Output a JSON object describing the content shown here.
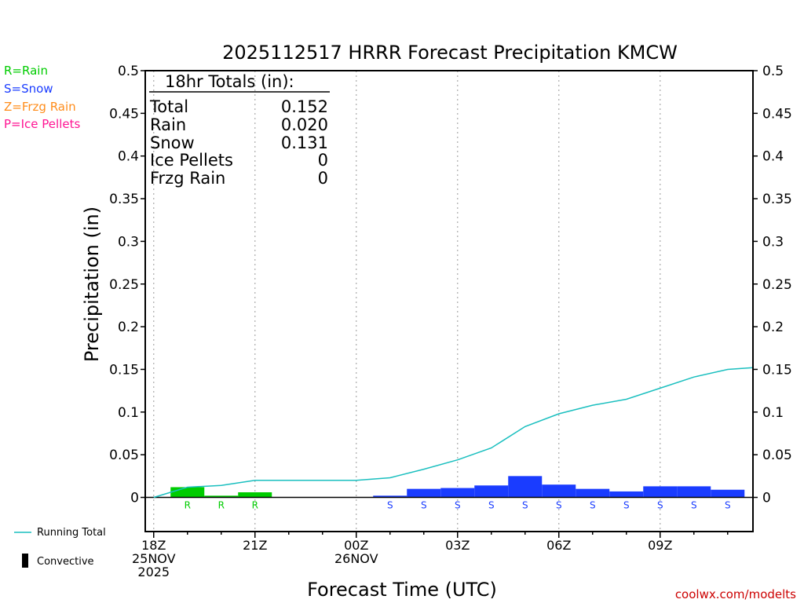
{
  "chart_data": {
    "type": "bar",
    "title": "2025112517 HRRR Forecast Precipitation KMCW",
    "xlabel": "Forecast Time (UTC)",
    "ylabel": "Precipitation (in)",
    "ylim": [
      -0.04,
      0.5
    ],
    "y_ticks": [
      0,
      0.05,
      0.1,
      0.15,
      0.2,
      0.25,
      0.3,
      0.35,
      0.4,
      0.45,
      0.5
    ],
    "y_tick_labels": [
      "0",
      "0.05",
      "0.1",
      "0.15",
      "0.2",
      "0.25",
      "0.3",
      "0.35",
      "0.4",
      "0.45",
      "0.5"
    ],
    "xlim_hours": [
      17.75,
      35.75
    ],
    "x_ticks": [
      {
        "hour": 18,
        "lines": [
          "18Z",
          "25NOV",
          "2025"
        ]
      },
      {
        "hour": 21,
        "lines": [
          "21Z"
        ]
      },
      {
        "hour": 24,
        "lines": [
          "00Z",
          "26NOV"
        ]
      },
      {
        "hour": 27,
        "lines": [
          "03Z"
        ]
      },
      {
        "hour": 30,
        "lines": [
          "06Z"
        ]
      },
      {
        "hour": 33,
        "lines": [
          "09Z"
        ]
      }
    ],
    "colors": {
      "rain": "#00cc00",
      "snow": "#1a3cff",
      "frzg_rain": "#ff8c1a",
      "ice_pellets": "#ff1493",
      "running_total": "#1abfbf",
      "convective": "#000000"
    },
    "type_legend": [
      {
        "label": "R=Rain",
        "color": "#00cc00"
      },
      {
        "label": "S=Snow",
        "color": "#1a3cff"
      },
      {
        "label": "Z=Frzg Rain",
        "color": "#ff8c1a"
      },
      {
        "label": "P=Ice Pellets",
        "color": "#ff1493"
      }
    ],
    "line_legend": {
      "running_total": "Running Total",
      "convective": "Convective"
    },
    "totals_box": {
      "header": "18hr Totals (in):",
      "rows": [
        {
          "label": "Total",
          "value": "0.152"
        },
        {
          "label": "Rain",
          "value": "0.020"
        },
        {
          "label": "Snow",
          "value": "0.131"
        },
        {
          "label": "Ice Pellets",
          "value": "0"
        },
        {
          "label": "Frzg Rain",
          "value": "0"
        }
      ]
    },
    "hourly": [
      {
        "hour": 19,
        "precip": 0.012,
        "ptype": "R"
      },
      {
        "hour": 20,
        "precip": 0.002,
        "ptype": "R"
      },
      {
        "hour": 21,
        "precip": 0.006,
        "ptype": "R"
      },
      {
        "hour": 22,
        "precip": 0.0,
        "ptype": ""
      },
      {
        "hour": 23,
        "precip": 0.0,
        "ptype": ""
      },
      {
        "hour": 24,
        "precip": 0.0,
        "ptype": ""
      },
      {
        "hour": 25,
        "precip": 0.002,
        "ptype": "S"
      },
      {
        "hour": 26,
        "precip": 0.01,
        "ptype": "S"
      },
      {
        "hour": 27,
        "precip": 0.011,
        "ptype": "S"
      },
      {
        "hour": 28,
        "precip": 0.014,
        "ptype": "S"
      },
      {
        "hour": 29,
        "precip": 0.025,
        "ptype": "S"
      },
      {
        "hour": 30,
        "precip": 0.015,
        "ptype": "S"
      },
      {
        "hour": 31,
        "precip": 0.01,
        "ptype": "S"
      },
      {
        "hour": 32,
        "precip": 0.007,
        "ptype": "S"
      },
      {
        "hour": 33,
        "precip": 0.013,
        "ptype": "S"
      },
      {
        "hour": 34,
        "precip": 0.013,
        "ptype": "S"
      },
      {
        "hour": 35,
        "precip": 0.009,
        "ptype": "S"
      }
    ],
    "running_total": {
      "hours": [
        18,
        19,
        20,
        21,
        22,
        23,
        24,
        25,
        26,
        27,
        28,
        29,
        30,
        31,
        32,
        33,
        34,
        35,
        35.75
      ],
      "values": [
        0.0,
        0.012,
        0.014,
        0.02,
        0.02,
        0.02,
        0.02,
        0.023,
        0.033,
        0.044,
        0.058,
        0.083,
        0.098,
        0.108,
        0.115,
        0.128,
        0.141,
        0.15,
        0.152
      ]
    }
  },
  "credit": "coolwx.com/modelts"
}
